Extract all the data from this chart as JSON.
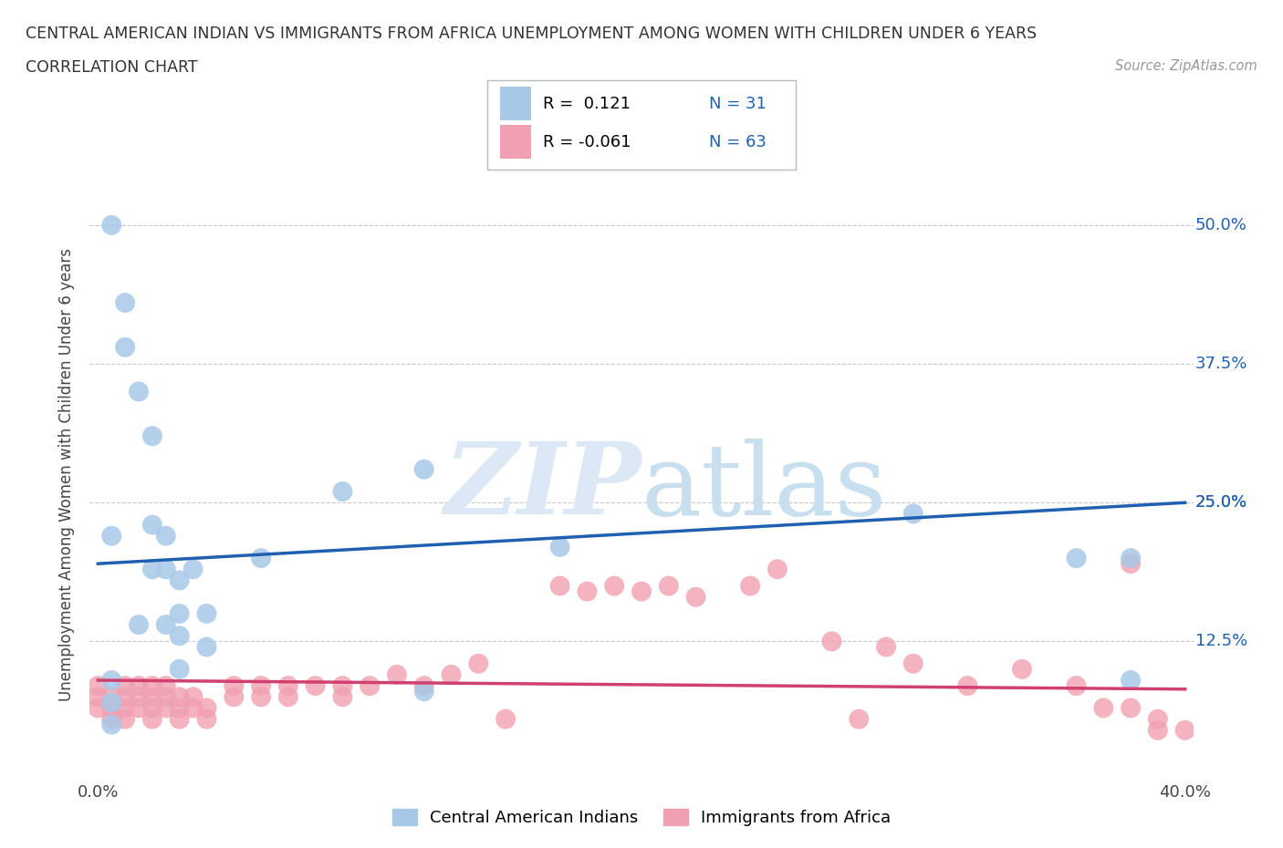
{
  "title_line1": "CENTRAL AMERICAN INDIAN VS IMMIGRANTS FROM AFRICA UNEMPLOYMENT AMONG WOMEN WITH CHILDREN UNDER 6 YEARS",
  "title_line2": "CORRELATION CHART",
  "source": "Source: ZipAtlas.com",
  "ylabel": "Unemployment Among Women with Children Under 6 years",
  "xlim": [
    0.0,
    0.4
  ],
  "ylim": [
    0.0,
    0.55
  ],
  "xticks": [
    0.0,
    0.05,
    0.1,
    0.15,
    0.2,
    0.25,
    0.3,
    0.35,
    0.4
  ],
  "ytick_positions": [
    0.0,
    0.125,
    0.25,
    0.375,
    0.5
  ],
  "grid_color": "#c8c8c8",
  "watermark_color": "#dce8f5",
  "blue_color": "#a8c8e8",
  "blue_line_color": "#2060b0",
  "pink_color": "#f0a0b0",
  "pink_line_color": "#d04070",
  "label1": "Central American Indians",
  "label2": "Immigrants from Africa",
  "R1": 0.121,
  "N1": 31,
  "R2": -0.061,
  "N2": 63,
  "blue_trend_start": 0.195,
  "blue_trend_end": 0.25,
  "pink_trend_start": 0.09,
  "pink_trend_end": 0.082,
  "blue_points_x": [
    0.005,
    0.01,
    0.01,
    0.015,
    0.02,
    0.02,
    0.025,
    0.025,
    0.03,
    0.03,
    0.035,
    0.04,
    0.04,
    0.005,
    0.02,
    0.015,
    0.025,
    0.03,
    0.03,
    0.06,
    0.09,
    0.12,
    0.17,
    0.3,
    0.36,
    0.38,
    0.38,
    0.12,
    0.005,
    0.005,
    0.005
  ],
  "blue_points_y": [
    0.5,
    0.43,
    0.39,
    0.35,
    0.31,
    0.23,
    0.22,
    0.19,
    0.18,
    0.15,
    0.19,
    0.15,
    0.12,
    0.22,
    0.19,
    0.14,
    0.14,
    0.13,
    0.1,
    0.2,
    0.26,
    0.28,
    0.21,
    0.24,
    0.2,
    0.2,
    0.09,
    0.08,
    0.09,
    0.07,
    0.05
  ],
  "pink_points_x": [
    0.0,
    0.0,
    0.0,
    0.005,
    0.005,
    0.005,
    0.01,
    0.01,
    0.01,
    0.01,
    0.015,
    0.015,
    0.015,
    0.02,
    0.02,
    0.02,
    0.02,
    0.025,
    0.025,
    0.025,
    0.03,
    0.03,
    0.03,
    0.035,
    0.035,
    0.04,
    0.04,
    0.05,
    0.05,
    0.06,
    0.06,
    0.07,
    0.07,
    0.08,
    0.09,
    0.09,
    0.1,
    0.11,
    0.12,
    0.13,
    0.14,
    0.15,
    0.17,
    0.18,
    0.19,
    0.2,
    0.21,
    0.22,
    0.24,
    0.25,
    0.27,
    0.28,
    0.29,
    0.3,
    0.32,
    0.34,
    0.36,
    0.37,
    0.38,
    0.38,
    0.39,
    0.39,
    0.4
  ],
  "pink_points_y": [
    0.065,
    0.075,
    0.085,
    0.055,
    0.065,
    0.075,
    0.055,
    0.065,
    0.075,
    0.085,
    0.065,
    0.075,
    0.085,
    0.055,
    0.065,
    0.075,
    0.085,
    0.065,
    0.075,
    0.085,
    0.055,
    0.065,
    0.075,
    0.065,
    0.075,
    0.055,
    0.065,
    0.075,
    0.085,
    0.075,
    0.085,
    0.075,
    0.085,
    0.085,
    0.075,
    0.085,
    0.085,
    0.095,
    0.085,
    0.095,
    0.105,
    0.055,
    0.175,
    0.17,
    0.175,
    0.17,
    0.175,
    0.165,
    0.175,
    0.19,
    0.125,
    0.055,
    0.12,
    0.105,
    0.085,
    0.1,
    0.085,
    0.065,
    0.195,
    0.065,
    0.055,
    0.045,
    0.045
  ]
}
